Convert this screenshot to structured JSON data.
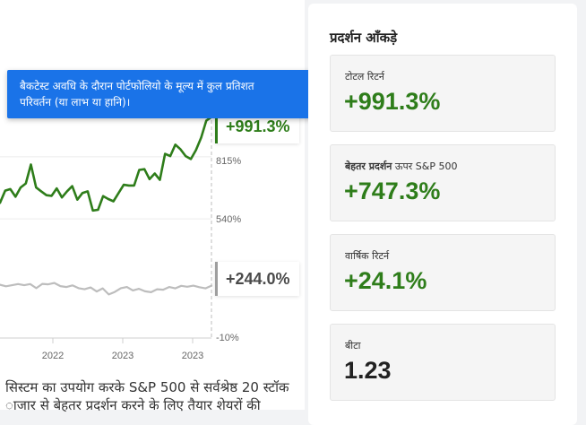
{
  "tooltip": {
    "text_line1": "बैकटेस्ट अवधि के दौरान पोर्टफोलियो के मूल्य में कुल प्रतिशत",
    "text_line2": "परिवर्तन (या लाभ या हानि)।"
  },
  "chart_data": {
    "type": "line",
    "x_ticks": [
      "2022",
      "2023",
      "2023"
    ],
    "y_ticks": [
      "815%",
      "540%",
      "-10%"
    ],
    "series": [
      {
        "color": "#2e7d1a",
        "end_label": "+991.3%",
        "values": [
          611,
          665,
          672,
          638,
          679,
          697,
          781,
          679,
          662,
          645,
          642,
          675,
          635,
          662,
          685,
          625,
          655,
          662,
          577,
          580,
          641,
          628,
          618,
          655,
          691,
          688,
          688,
          757,
          760,
          716,
          741,
          713,
          828,
          818,
          869,
          848,
          818,
          805,
          845,
          900,
          975,
          991
        ]
      },
      {
        "color": "#bdbdbd",
        "end_label": "+244.0%",
        "values": [
          248,
          241,
          246,
          251,
          246,
          251,
          233,
          252,
          250,
          256,
          242,
          238,
          245,
          233,
          228,
          236,
          218,
          232,
          205,
          216,
          233,
          238,
          223,
          230,
          219,
          215,
          228,
          226,
          238,
          232,
          243,
          239,
          244,
          237,
          232,
          244
        ]
      }
    ]
  },
  "caption": {
    "line1": "सिस्टम का उपयोग करके S&P 500 से सर्वश्रेष्ठ 20 स्टॉक",
    "line2": "ाजार से बेहतर प्रदर्शन करने के लिए तैयार शेयरों की"
  },
  "stats": {
    "title": "प्रदर्शन आँकड़े",
    "cards": [
      {
        "label": "टोटल रिटर्न",
        "label_bold": "",
        "value": "+991.3%"
      },
      {
        "label": "ऊपर S&P 500",
        "label_bold": "बेहतर प्रदर्शन",
        "value": "+747.3%"
      },
      {
        "label": "वार्षिक रिटर्न",
        "label_bold": "",
        "value": "+24.1%"
      },
      {
        "label": "बीटा",
        "label_bold": "",
        "value": "1.23"
      }
    ]
  }
}
